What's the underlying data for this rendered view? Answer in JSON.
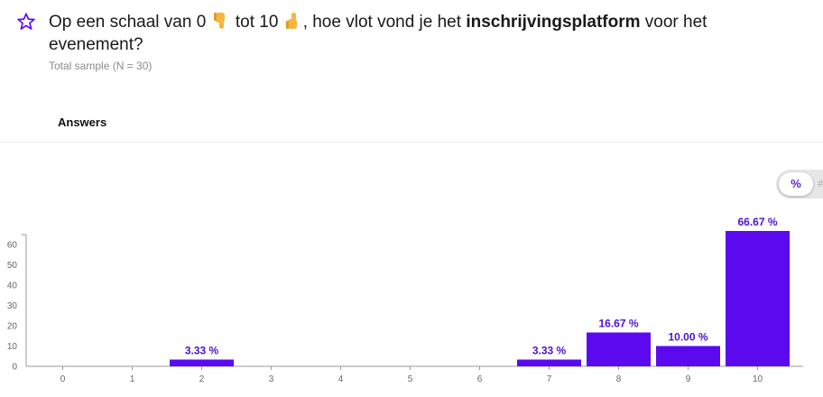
{
  "question": {
    "part1": "Op een schaal van 0",
    "part2": "tot 10",
    "part3": ", hoe vlot vond je het",
    "bold": "inschrijvingsplatform",
    "part4": "voor het evenement?"
  },
  "sample_text": "Total sample (N = 30)",
  "answers_label": "Answers",
  "toggle": {
    "percent_label": "%"
  },
  "colors": {
    "accent": "#5b0af0",
    "label": "#4b12d6",
    "axis": "#999999"
  },
  "icons": [
    "star-icon",
    "thumbs-down-icon",
    "thumbs-up-icon"
  ],
  "chart_data": {
    "type": "bar",
    "categories": [
      "0",
      "1",
      "2",
      "3",
      "4",
      "5",
      "6",
      "7",
      "8",
      "9",
      "10"
    ],
    "values": [
      0,
      0,
      3.33,
      0,
      0,
      0,
      0,
      3.33,
      16.67,
      10.0,
      66.67
    ],
    "data_labels": [
      "",
      "",
      "3.33 %",
      "",
      "",
      "",
      "",
      "3.33 %",
      "16.67 %",
      "10.00 %",
      "66.67 %"
    ],
    "yticks": [
      "0",
      "10",
      "20",
      "30",
      "40",
      "50",
      "60"
    ],
    "ylim": [
      0,
      68
    ],
    "grid": false
  }
}
